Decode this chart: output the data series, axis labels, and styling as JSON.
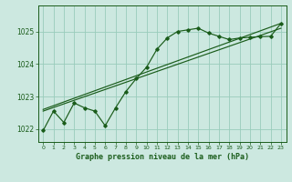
{
  "title": "Graphe pression niveau de la mer (hPa)",
  "bg_color": "#cce8e0",
  "grid_color": "#99ccbb",
  "line_color": "#1a5c1a",
  "xlim": [
    -0.5,
    23.5
  ],
  "ylim": [
    1021.6,
    1025.8
  ],
  "yticks": [
    1022,
    1023,
    1024,
    1025
  ],
  "xticks": [
    0,
    1,
    2,
    3,
    4,
    5,
    6,
    7,
    8,
    9,
    10,
    11,
    12,
    13,
    14,
    15,
    16,
    17,
    18,
    19,
    20,
    21,
    22,
    23
  ],
  "series1": [
    1021.95,
    1022.55,
    1022.2,
    1022.8,
    1022.65,
    1022.55,
    1022.1,
    1022.65,
    1023.15,
    1023.55,
    1023.9,
    1024.45,
    1024.8,
    1025.0,
    1025.05,
    1025.1,
    1024.95,
    1024.85,
    1024.75,
    1024.8,
    1024.82,
    1024.84,
    1024.85,
    1025.25
  ],
  "series2_x": [
    0,
    23
  ],
  "series2_y": [
    1022.6,
    1025.25
  ],
  "series3_x": [
    0,
    23
  ],
  "series3_y": [
    1022.55,
    1025.1
  ]
}
